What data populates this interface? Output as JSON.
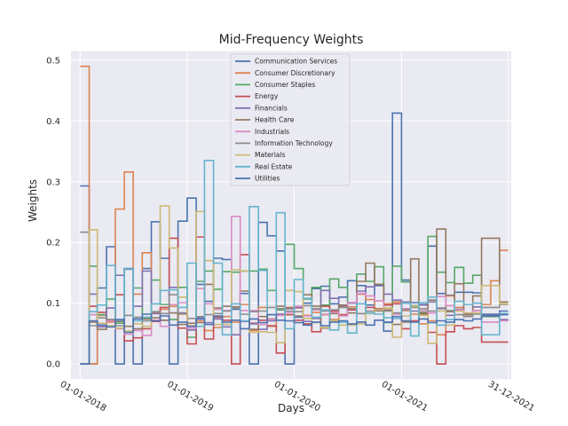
{
  "chart_data": {
    "type": "line",
    "drawstyle": "steps-post",
    "title": "Mid-Frequency Weights",
    "xlabel": "Days",
    "ylabel": "Weights",
    "xlim": [
      "2017-12-01",
      "2022-01-10"
    ],
    "ylim": [
      -0.025,
      0.515
    ],
    "xticks": [
      {
        "label": "01-01-2018",
        "date": "2018-01-01"
      },
      {
        "label": "01-01-2019",
        "date": "2019-01-01"
      },
      {
        "label": "01-01-2020",
        "date": "2020-01-01"
      },
      {
        "label": "01-01-2021",
        "date": "2021-01-01"
      },
      {
        "label": "31-12-2021",
        "date": "2021-12-31"
      }
    ],
    "yticks": [
      0.0,
      0.1,
      0.2,
      0.3,
      0.4,
      0.5
    ],
    "ytick_labels": [
      "0.0",
      "0.1",
      "0.2",
      "0.3",
      "0.4",
      "0.5"
    ],
    "grid": true,
    "legend_position": "top-center",
    "x": [
      "2018-01-01",
      "2018-02-01",
      "2018-03-01",
      "2018-04-01",
      "2018-05-01",
      "2018-06-01",
      "2018-07-01",
      "2018-08-01",
      "2018-09-01",
      "2018-10-01",
      "2018-11-01",
      "2018-12-01",
      "2019-01-01",
      "2019-02-01",
      "2019-03-01",
      "2019-04-01",
      "2019-05-01",
      "2019-06-01",
      "2019-07-01",
      "2019-08-01",
      "2019-09-01",
      "2019-10-01",
      "2019-11-01",
      "2019-12-01",
      "2020-01-01",
      "2020-02-01",
      "2020-03-01",
      "2020-04-01",
      "2020-05-01",
      "2020-06-01",
      "2020-07-01",
      "2020-08-01",
      "2020-09-01",
      "2020-10-01",
      "2020-11-01",
      "2020-12-01",
      "2021-01-01",
      "2021-02-01",
      "2021-03-01",
      "2021-04-01",
      "2021-05-01",
      "2021-06-01",
      "2021-07-01",
      "2021-08-01",
      "2021-09-01",
      "2021-10-01",
      "2021-11-01",
      "2021-12-01",
      "2021-12-31"
    ],
    "series": [
      {
        "name": "Communication Services",
        "color": "#4c72b0",
        "values": [
          0.293,
          0.0,
          0.125,
          0.193,
          0.0,
          0.157,
          0.0,
          0.157,
          0.234,
          0.174,
          0.0,
          0.235,
          0.273,
          0.131,
          0.103,
          0.174,
          0.172,
          0.09,
          0.116,
          0.0,
          0.233,
          0.211,
          0.186,
          0.0,
          0.077,
          0.1,
          0.124,
          0.128,
          0.099,
          0.11,
          0.137,
          0.129,
          0.097,
          0.129,
          0.054,
          0.413,
          0.138,
          0.101,
          0.098,
          0.194,
          0.116,
          0.113,
          0.118,
          0.118,
          0.117,
          0.082,
          0.082,
          0.087,
          0.087
        ]
      },
      {
        "name": "Consumer Discretionary",
        "color": "#dd8452",
        "values": [
          0.49,
          0.0,
          0.08,
          0.069,
          0.255,
          0.316,
          0.115,
          0.183,
          0.085,
          0.09,
          0.095,
          0.082,
          0.063,
          0.071,
          0.055,
          0.06,
          0.078,
          0.069,
          0.098,
          0.055,
          0.093,
          0.062,
          0.082,
          0.093,
          0.092,
          0.08,
          0.085,
          0.081,
          0.073,
          0.094,
          0.094,
          0.115,
          0.106,
          0.087,
          0.099,
          0.102,
          0.088,
          0.082,
          0.066,
          0.071,
          0.048,
          0.112,
          0.093,
          0.081,
          0.088,
          0.098,
          0.137,
          0.187,
          0.187
        ]
      },
      {
        "name": "Consumer Staples",
        "color": "#55a868",
        "values": [
          0.0,
          0.161,
          0.081,
          0.107,
          0.067,
          0.08,
          0.125,
          0.075,
          0.138,
          0.098,
          0.073,
          0.126,
          0.044,
          0.136,
          0.153,
          0.123,
          0.152,
          0.151,
          0.153,
          0.153,
          0.156,
          0.121,
          0.089,
          0.197,
          0.157,
          0.107,
          0.126,
          0.097,
          0.14,
          0.126,
          0.101,
          0.148,
          0.136,
          0.16,
          0.068,
          0.161,
          0.135,
          0.096,
          0.085,
          0.21,
          0.151,
          0.134,
          0.159,
          0.133,
          0.146,
          0.078,
          0.078,
          0.082,
          0.082
        ]
      },
      {
        "name": "Energy",
        "color": "#c44e52",
        "values": [
          0.0,
          0.095,
          0.085,
          0.073,
          0.114,
          0.038,
          0.043,
          0.058,
          0.07,
          0.093,
          0.207,
          0.059,
          0.033,
          0.209,
          0.041,
          0.077,
          0.072,
          0.0,
          0.18,
          0.067,
          0.072,
          0.063,
          0.018,
          0.081,
          0.072,
          0.066,
          0.053,
          0.095,
          0.087,
          0.081,
          0.089,
          0.083,
          0.093,
          0.091,
          0.097,
          0.099,
          0.058,
          0.071,
          0.083,
          0.052,
          0.0,
          0.053,
          0.063,
          0.058,
          0.06,
          0.036,
          0.036,
          0.036,
          0.036
        ]
      },
      {
        "name": "Financials",
        "color": "#8172b3",
        "values": [
          0.0,
          0.115,
          0.061,
          0.092,
          0.146,
          0.156,
          0.095,
          0.153,
          0.083,
          0.072,
          0.126,
          0.084,
          0.056,
          0.076,
          0.068,
          0.074,
          0.061,
          0.048,
          0.07,
          0.066,
          0.057,
          0.071,
          0.082,
          0.091,
          0.093,
          0.07,
          0.075,
          0.121,
          0.108,
          0.096,
          0.1,
          0.12,
          0.127,
          0.131,
          0.115,
          0.105,
          0.102,
          0.087,
          0.097,
          0.102,
          0.091,
          0.08,
          0.09,
          0.083,
          0.094,
          0.08,
          0.08,
          0.073,
          0.073
        ]
      },
      {
        "name": "Health Care",
        "color": "#937860",
        "values": [
          0.0,
          0.069,
          0.057,
          0.071,
          0.07,
          0.062,
          0.058,
          0.074,
          0.076,
          0.072,
          0.084,
          0.065,
          0.067,
          0.068,
          0.131,
          0.092,
          0.095,
          0.094,
          0.12,
          0.057,
          0.078,
          0.074,
          0.095,
          0.092,
          0.079,
          0.114,
          0.095,
          0.059,
          0.083,
          0.097,
          0.084,
          0.136,
          0.166,
          0.131,
          0.089,
          0.065,
          0.069,
          0.173,
          0.082,
          0.105,
          0.222,
          0.086,
          0.132,
          0.081,
          0.112,
          0.207,
          0.207,
          0.102,
          0.102
        ]
      },
      {
        "name": "Industrials",
        "color": "#da8bc3",
        "values": [
          0.0,
          0.081,
          0.063,
          0.071,
          0.058,
          0.049,
          0.055,
          0.047,
          0.072,
          0.062,
          0.098,
          0.101,
          0.059,
          0.124,
          0.099,
          0.09,
          0.088,
          0.243,
          0.088,
          0.088,
          0.065,
          0.073,
          0.08,
          0.085,
          0.095,
          0.079,
          0.089,
          0.082,
          0.085,
          0.079,
          0.101,
          0.116,
          0.112,
          0.104,
          0.092,
          0.082,
          0.091,
          0.094,
          0.088,
          0.084,
          0.111,
          0.096,
          0.089,
          0.078,
          0.088,
          0.069,
          0.069,
          0.071,
          0.071
        ]
      },
      {
        "name": "Information Technology",
        "color": "#8c8c8c",
        "values": [
          0.217,
          0.063,
          0.076,
          0.073,
          0.063,
          0.08,
          0.077,
          0.071,
          0.086,
          0.083,
          0.114,
          0.083,
          0.075,
          0.078,
          0.081,
          0.083,
          0.087,
          0.092,
          0.082,
          0.086,
          0.087,
          0.093,
          0.091,
          0.087,
          0.086,
          0.096,
          0.091,
          0.087,
          0.089,
          0.093,
          0.091,
          0.083,
          0.087,
          0.088,
          0.087,
          0.084,
          0.089,
          0.093,
          0.091,
          0.087,
          0.092,
          0.088,
          0.081,
          0.078,
          0.082,
          0.093,
          0.093,
          0.098,
          0.098
        ]
      },
      {
        "name": "Materials",
        "color": "#ccb974",
        "values": [
          0.0,
          0.221,
          0.067,
          0.063,
          0.059,
          0.054,
          0.066,
          0.062,
          0.099,
          0.26,
          0.191,
          0.11,
          0.062,
          0.251,
          0.17,
          0.065,
          0.065,
          0.155,
          0.153,
          0.052,
          0.053,
          0.052,
          0.035,
          0.121,
          0.119,
          0.075,
          0.068,
          0.06,
          0.071,
          0.064,
          0.064,
          0.066,
          0.083,
          0.09,
          0.092,
          0.044,
          0.079,
          0.095,
          0.08,
          0.034,
          0.087,
          0.064,
          0.087,
          0.084,
          0.084,
          0.129,
          0.129,
          0.099,
          0.099
        ]
      },
      {
        "name": "Real Estate",
        "color": "#64b5cd",
        "values": [
          0.0,
          0.086,
          0.097,
          0.162,
          0.072,
          0.157,
          0.071,
          0.077,
          0.099,
          0.121,
          0.122,
          0.093,
          0.166,
          0.062,
          0.335,
          0.166,
          0.048,
          0.099,
          0.071,
          0.259,
          0.154,
          0.081,
          0.249,
          0.058,
          0.139,
          0.108,
          0.077,
          0.089,
          0.056,
          0.069,
          0.051,
          0.099,
          0.084,
          0.082,
          0.076,
          0.075,
          0.1,
          0.046,
          0.101,
          0.11,
          0.064,
          0.073,
          0.103,
          0.098,
          0.1,
          0.048,
          0.048,
          0.083,
          0.083
        ]
      },
      {
        "name": "Utilities",
        "color": "#4c72b0",
        "values": [
          0.0,
          0.071,
          0.064,
          0.061,
          0.073,
          0.052,
          0.074,
          0.082,
          0.071,
          0.079,
          0.064,
          0.069,
          0.062,
          0.074,
          0.065,
          0.079,
          0.069,
          0.072,
          0.058,
          0.074,
          0.068,
          0.081,
          0.072,
          0.071,
          0.068,
          0.064,
          0.069,
          0.063,
          0.069,
          0.071,
          0.066,
          0.069,
          0.064,
          0.072,
          0.069,
          0.078,
          0.071,
          0.069,
          0.074,
          0.068,
          0.071,
          0.069,
          0.073,
          0.071,
          0.074,
          0.079,
          0.079,
          0.081,
          0.081
        ]
      }
    ]
  }
}
